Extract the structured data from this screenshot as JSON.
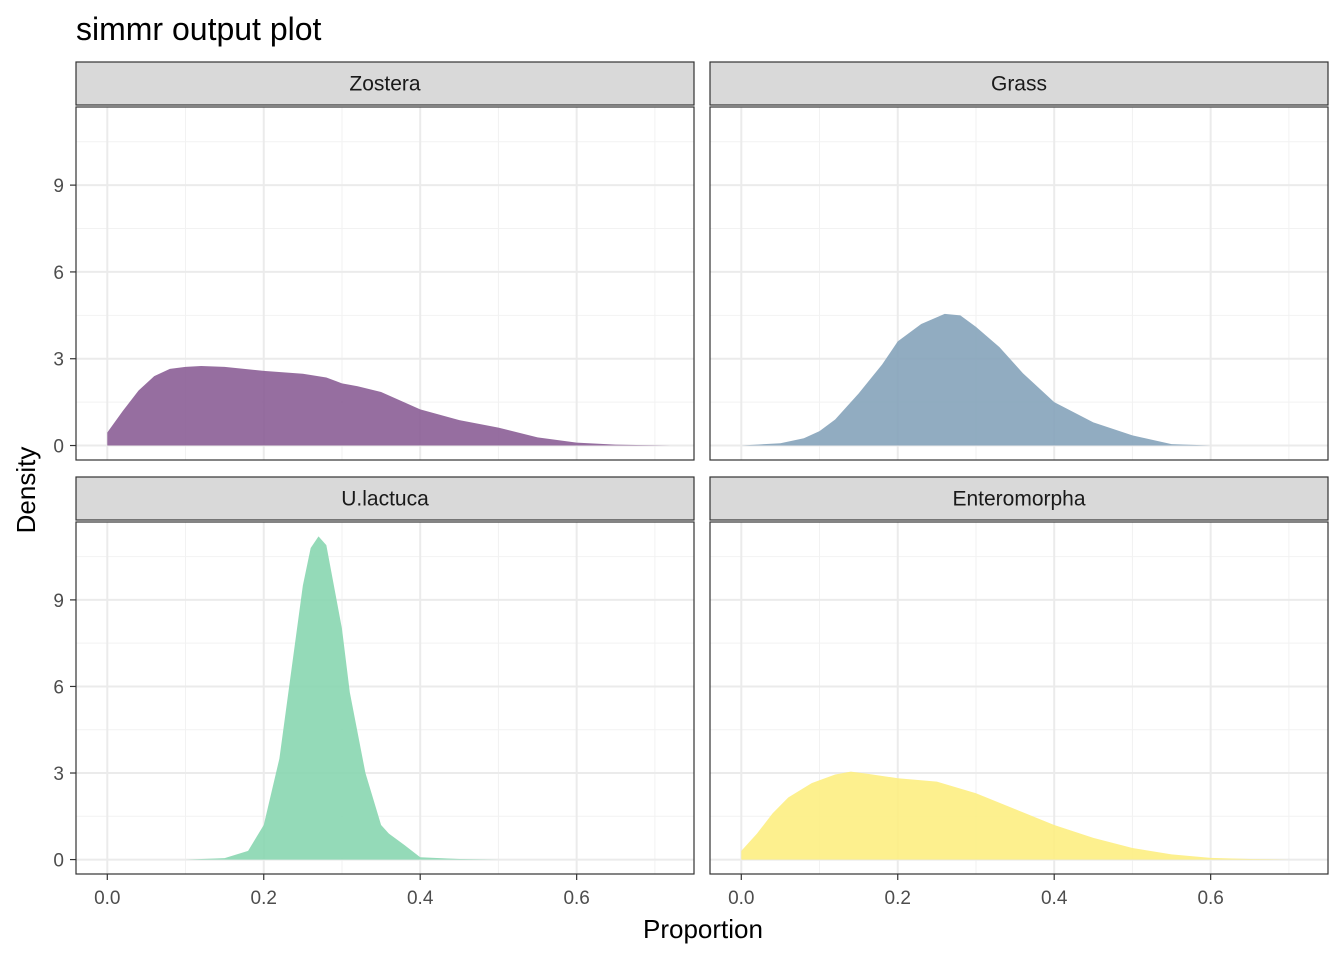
{
  "chart_data": {
    "type": "area",
    "title": "simmr output plot",
    "xlabel": "Proportion",
    "ylabel": "Density",
    "xlim": [
      -0.04,
      0.75
    ],
    "ylim": [
      -0.5,
      11.7
    ],
    "x_ticks": [
      0.0,
      0.2,
      0.4,
      0.6
    ],
    "x_tick_labels": [
      "0.0",
      "0.2",
      "0.4",
      "0.6"
    ],
    "y_ticks": [
      0,
      3,
      6,
      9
    ],
    "y_tick_labels": [
      "0",
      "3",
      "6",
      "9"
    ],
    "grid": true,
    "legend": "none",
    "facets": [
      {
        "name": "Zostera",
        "color": "#8b5e96",
        "x": [
          0.0,
          0.02,
          0.04,
          0.06,
          0.08,
          0.1,
          0.12,
          0.15,
          0.2,
          0.25,
          0.28,
          0.3,
          0.32,
          0.35,
          0.4,
          0.45,
          0.5,
          0.55,
          0.6,
          0.65,
          0.7,
          0.72
        ],
        "values": [
          0.45,
          1.2,
          1.9,
          2.4,
          2.65,
          2.72,
          2.75,
          2.72,
          2.58,
          2.48,
          2.35,
          2.15,
          2.05,
          1.85,
          1.25,
          0.88,
          0.62,
          0.28,
          0.1,
          0.03,
          0.01,
          0.0
        ]
      },
      {
        "name": "Grass",
        "color": "#85a3ba",
        "x": [
          0.0,
          0.05,
          0.08,
          0.1,
          0.12,
          0.15,
          0.18,
          0.2,
          0.23,
          0.26,
          0.28,
          0.3,
          0.33,
          0.36,
          0.4,
          0.45,
          0.5,
          0.55,
          0.6
        ],
        "values": [
          0.0,
          0.08,
          0.25,
          0.5,
          0.9,
          1.8,
          2.8,
          3.6,
          4.2,
          4.55,
          4.5,
          4.1,
          3.4,
          2.5,
          1.5,
          0.8,
          0.35,
          0.05,
          0.0
        ]
      },
      {
        "name": "U.lactuca",
        "color": "#88d6b0",
        "x": [
          0.1,
          0.15,
          0.18,
          0.2,
          0.22,
          0.24,
          0.25,
          0.26,
          0.27,
          0.28,
          0.3,
          0.31,
          0.33,
          0.35,
          0.36,
          0.38,
          0.4,
          0.45,
          0.5
        ],
        "values": [
          0.0,
          0.05,
          0.3,
          1.2,
          3.5,
          7.5,
          9.5,
          10.8,
          11.2,
          10.9,
          8.0,
          5.8,
          3.0,
          1.2,
          0.9,
          0.5,
          0.08,
          0.02,
          0.0
        ]
      },
      {
        "name": "Enteromorpha",
        "color": "#fdee82",
        "x": [
          0.0,
          0.02,
          0.04,
          0.06,
          0.09,
          0.12,
          0.14,
          0.16,
          0.2,
          0.25,
          0.3,
          0.35,
          0.4,
          0.45,
          0.5,
          0.55,
          0.6,
          0.65,
          0.7
        ],
        "values": [
          0.3,
          0.9,
          1.6,
          2.15,
          2.65,
          2.95,
          3.05,
          2.98,
          2.82,
          2.7,
          2.3,
          1.75,
          1.2,
          0.75,
          0.4,
          0.18,
          0.06,
          0.02,
          0.0
        ]
      }
    ]
  }
}
